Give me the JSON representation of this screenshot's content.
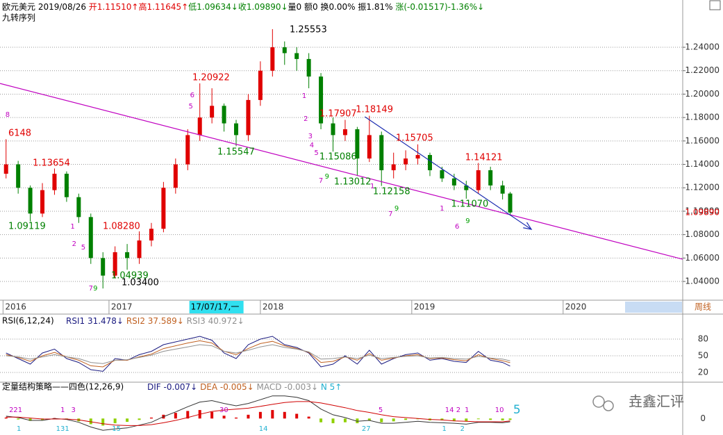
{
  "header": {
    "quote": [
      {
        "text": "欧元美元 2019/08/26 ",
        "color": "#000000"
      },
      {
        "text": "开1.11510↑",
        "color": "#e00000"
      },
      {
        "text": "高1.11645↑",
        "color": "#e00000"
      },
      {
        "text": "低1.09634↓",
        "color": "#008000"
      },
      {
        "text": "收1.09890↓",
        "color": "#008000"
      },
      {
        "text": "量0 额0 换0.00% ",
        "color": "#000000"
      },
      {
        "text": "振1.81% ",
        "color": "#000000"
      },
      {
        "text": "涨(-0.01517)-1.36%↓",
        "color": "#008000"
      }
    ],
    "indicator": "九转序列",
    "period": "周线",
    "cursor_date": "17/07/17,一",
    "watermark": "垚鑫汇评"
  },
  "chart_data": [
    {
      "type": "candlestick",
      "x": [
        2016.32,
        2016.4,
        2016.48,
        2016.56,
        2016.64,
        2016.72,
        2016.8,
        2016.88,
        2016.96,
        2017.04,
        2017.12,
        2017.2,
        2017.28,
        2017.36,
        2017.44,
        2017.52,
        2017.6,
        2017.68,
        2017.76,
        2017.84,
        2017.92,
        2018.0,
        2018.08,
        2018.16,
        2018.24,
        2018.32,
        2018.4,
        2018.48,
        2018.56,
        2018.64,
        2018.72,
        2018.8,
        2018.88,
        2018.96,
        2019.04,
        2019.12,
        2019.2,
        2019.28,
        2019.36,
        2019.44,
        2019.52,
        2019.6,
        2019.65
      ],
      "open": [
        1.132,
        1.14,
        1.12,
        1.098,
        1.118,
        1.132,
        1.112,
        1.095,
        1.06,
        1.045,
        1.065,
        1.06,
        1.075,
        1.085,
        1.12,
        1.14,
        1.165,
        1.18,
        1.19,
        1.175,
        1.165,
        1.195,
        1.22,
        1.24,
        1.235,
        1.23,
        1.215,
        1.175,
        1.165,
        1.17,
        1.145,
        1.165,
        1.135,
        1.14,
        1.145,
        1.148,
        1.135,
        1.128,
        1.122,
        1.118,
        1.135,
        1.122,
        1.1151
      ],
      "high": [
        1.1615,
        1.143,
        1.122,
        1.124,
        1.1365,
        1.134,
        1.115,
        1.098,
        1.065,
        1.07,
        1.072,
        1.0828,
        1.09,
        1.125,
        1.145,
        1.17,
        1.2092,
        1.205,
        1.192,
        1.178,
        1.2,
        1.228,
        1.2555,
        1.245,
        1.24,
        1.235,
        1.218,
        1.18,
        1.178,
        1.172,
        1.1815,
        1.168,
        1.15,
        1.152,
        1.1571,
        1.15,
        1.138,
        1.132,
        1.126,
        1.1412,
        1.138,
        1.126,
        1.1165
      ],
      "low": [
        1.128,
        1.115,
        1.0912,
        1.095,
        1.114,
        1.108,
        1.09,
        1.055,
        1.034,
        1.043,
        1.05,
        1.055,
        1.07,
        1.082,
        1.115,
        1.135,
        1.16,
        1.175,
        1.168,
        1.1555,
        1.16,
        1.19,
        1.215,
        1.225,
        1.22,
        1.205,
        1.17,
        1.1509,
        1.16,
        1.1301,
        1.142,
        1.1216,
        1.128,
        1.135,
        1.14,
        1.13,
        1.125,
        1.118,
        1.1107,
        1.115,
        1.118,
        1.11,
        1.0963
      ],
      "close": [
        1.14,
        1.12,
        1.098,
        1.118,
        1.132,
        1.112,
        1.095,
        1.06,
        1.045,
        1.065,
        1.06,
        1.075,
        1.085,
        1.12,
        1.14,
        1.165,
        1.18,
        1.19,
        1.175,
        1.165,
        1.195,
        1.22,
        1.24,
        1.235,
        1.23,
        1.215,
        1.175,
        1.165,
        1.17,
        1.145,
        1.165,
        1.135,
        1.14,
        1.145,
        1.148,
        1.135,
        1.128,
        1.122,
        1.118,
        1.135,
        1.122,
        1.115,
        1.0989
      ],
      "up_color": "#e00000",
      "down_color": "#008000",
      "xlim": [
        2016.28,
        2020.79
      ],
      "ylim": [
        1.024,
        1.2697
      ],
      "xticks": [
        {
          "value": 2016.3,
          "label": "2016"
        },
        2017,
        2018,
        2019,
        2020
      ],
      "yticks": [
        {
          "value": 1.04,
          "label": "1.04000"
        },
        {
          "value": 1.06,
          "label": "1.06000"
        },
        {
          "value": 1.08,
          "label": "1.08000"
        },
        {
          "value": 1.1,
          "label": "1.10000"
        },
        {
          "value": 1.12,
          "label": "1.12000"
        },
        {
          "value": 1.14,
          "label": "1.14000"
        },
        {
          "value": 1.16,
          "label": "1.16000"
        },
        {
          "value": 1.18,
          "label": "1.18000"
        },
        {
          "value": 1.2,
          "label": "1.20000"
        },
        {
          "value": 1.22,
          "label": "1.22000"
        },
        {
          "value": 1.24,
          "label": "1.24000"
        }
      ],
      "last_price": {
        "value": 1.0989,
        "label": "1.09890",
        "color": "#e00000"
      },
      "cursor_x": 2017.54,
      "grid": true,
      "lines": [
        {
          "color": "#c000c0",
          "points": [
            [
              2016.28,
              1.2091
            ],
            [
              2020.79,
              1.059
            ]
          ]
        },
        {
          "color": "#1a2bb0",
          "points": [
            [
              2018.69,
              1.1807
            ],
            [
              2019.79,
              1.0845
            ]
          ],
          "arrow": true
        }
      ],
      "annotations": [
        {
          "text": "6148",
          "x": 2016.335,
          "y": 1.1664,
          "color": "#e00000"
        },
        {
          "text": "1.13654",
          "x": 2016.496,
          "y": 1.1409,
          "color": "#e00000"
        },
        {
          "text": "1.09119",
          "x": 2016.335,
          "y": 1.0869,
          "color": "#008000"
        },
        {
          "text": "1.08280",
          "x": 2016.959,
          "y": 1.0869,
          "color": "#e00000"
        },
        {
          "text": "1.04939",
          "x": 2017.014,
          "y": 1.0448,
          "color": "#008000"
        },
        {
          "text": "1.03400",
          "x": 2017.083,
          "y": 1.0388,
          "color": "#000000"
        },
        {
          "text": "1.20922",
          "x": 2017.551,
          "y": 1.2139,
          "color": "#e00000"
        },
        {
          "text": "1.15547",
          "x": 2017.716,
          "y": 1.1504,
          "color": "#008000"
        },
        {
          "text": "1.25553",
          "x": 2018.193,
          "y": 1.2548,
          "color": "#000000"
        },
        {
          "text": "1.17907",
          "x": 2018.39,
          "y": 1.183,
          "color": "#e00000"
        },
        {
          "text": "1.18149",
          "x": 2018.63,
          "y": 1.1866,
          "color": "#e00000"
        },
        {
          "text": "1.15086",
          "x": 2018.39,
          "y": 1.1462,
          "color": "#008000"
        },
        {
          "text": "1.13012",
          "x": 2018.486,
          "y": 1.1249,
          "color": "#008000"
        },
        {
          "text": "1.12158",
          "x": 2018.743,
          "y": 1.1166,
          "color": "#008000"
        },
        {
          "text": "1.15705",
          "x": 2018.895,
          "y": 1.1623,
          "color": "#e00000"
        },
        {
          "text": "1.14121",
          "x": 2019.353,
          "y": 1.1456,
          "color": "#e00000"
        },
        {
          "text": "1.11070",
          "x": 2019.26,
          "y": 1.1059,
          "color": "#008000"
        }
      ],
      "sequence_labels": [
        {
          "text": "8",
          "x": 2016.33,
          "y": 1.1824,
          "color": "#c000c0"
        },
        {
          "text": "1",
          "x": 2016.76,
          "y": 1.0869,
          "color": "#c000c0"
        },
        {
          "text": "2",
          "x": 2016.77,
          "y": 1.072,
          "color": "#c000c0"
        },
        {
          "text": "5",
          "x": 2016.83,
          "y": 1.069,
          "color": "#c000c0"
        },
        {
          "text": "7",
          "x": 2016.88,
          "y": 1.034,
          "color": "#c000c0"
        },
        {
          "text": "9",
          "x": 2016.91,
          "y": 1.034,
          "color": "#00a000"
        },
        {
          "text": "5",
          "x": 2017.54,
          "y": 1.1896,
          "color": "#c000c0"
        },
        {
          "text": "6",
          "x": 2017.55,
          "y": 1.199,
          "color": "#c000c0"
        },
        {
          "text": "1",
          "x": 2018.29,
          "y": 1.1985,
          "color": "#c000c0"
        },
        {
          "text": "2",
          "x": 2018.3,
          "y": 1.1789,
          "color": "#c000c0"
        },
        {
          "text": "3",
          "x": 2018.33,
          "y": 1.164,
          "color": "#c000c0"
        },
        {
          "text": "4",
          "x": 2018.34,
          "y": 1.1563,
          "color": "#c000c0"
        },
        {
          "text": "5",
          "x": 2018.37,
          "y": 1.1498,
          "color": "#c000c0"
        },
        {
          "text": "7",
          "x": 2018.4,
          "y": 1.126,
          "color": "#c000c0"
        },
        {
          "text": "9",
          "x": 2018.44,
          "y": 1.1296,
          "color": "#00a000"
        },
        {
          "text": "1",
          "x": 2018.74,
          "y": 1.1213,
          "color": "#c000c0"
        },
        {
          "text": "7",
          "x": 2018.86,
          "y": 1.0976,
          "color": "#c000c0"
        },
        {
          "text": "9",
          "x": 2018.9,
          "y": 1.1023,
          "color": "#00a000"
        },
        {
          "text": "1",
          "x": 2019.2,
          "y": 1.1023,
          "color": "#c000c0"
        },
        {
          "text": "6",
          "x": 2019.3,
          "y": 1.0869,
          "color": "#c000c0"
        },
        {
          "text": "9",
          "x": 2019.37,
          "y": 1.0916,
          "color": "#00a000"
        }
      ]
    },
    {
      "type": "line",
      "title": "RSI(6,12,24)",
      "legend": [
        {
          "text": "RSI1 31.478↓",
          "color": "#1a1a80"
        },
        {
          "text": "RSI2 37.589↓",
          "color": "#c06020"
        },
        {
          "text": "RSI3 40.972↓",
          "color": "#909090"
        }
      ],
      "series": [
        {
          "name": "RSI1",
          "color": "#1a1a80",
          "values": [
            55,
            45,
            35,
            55,
            62,
            45,
            38,
            25,
            22,
            45,
            42,
            52,
            58,
            70,
            75,
            80,
            85,
            78,
            55,
            45,
            70,
            80,
            85,
            70,
            65,
            55,
            30,
            35,
            50,
            35,
            60,
            35,
            45,
            52,
            55,
            42,
            45,
            40,
            38,
            58,
            42,
            38,
            31.478
          ]
        },
        {
          "name": "RSI2",
          "color": "#c06020",
          "values": [
            52,
            47,
            40,
            50,
            56,
            48,
            42,
            32,
            30,
            42,
            42,
            48,
            53,
            63,
            68,
            73,
            77,
            73,
            58,
            52,
            63,
            72,
            76,
            68,
            63,
            56,
            38,
            40,
            48,
            42,
            54,
            42,
            46,
            50,
            52,
            45,
            46,
            43,
            41,
            52,
            45,
            41,
            37.589
          ]
        },
        {
          "name": "RSI3",
          "color": "#909090",
          "values": [
            50,
            48,
            44,
            48,
            52,
            48,
            45,
            38,
            36,
            42,
            43,
            47,
            51,
            58,
            62,
            66,
            70,
            68,
            58,
            55,
            60,
            66,
            70,
            65,
            62,
            57,
            44,
            45,
            48,
            45,
            51,
            45,
            47,
            49,
            50,
            46,
            47,
            45,
            44,
            49,
            46,
            44,
            40.972
          ]
        }
      ],
      "ylim": [
        5,
        102.5
      ],
      "yticks": [
        20,
        50,
        80
      ],
      "grid": true
    },
    {
      "type": "macd",
      "title": "定量结构策略——四色(12,26,9)",
      "legend": [
        {
          "text": "DIF -0.007↓",
          "color": "#1a1a80"
        },
        {
          "text": "DEA -0.005↓",
          "color": "#c06020"
        },
        {
          "text": "MACD -0.003↓",
          "color": "#909090"
        },
        {
          "text": "N 5↑",
          "color": "#20b0d0"
        }
      ],
      "histogram": [
        0.002,
        -0.002,
        -0.005,
        -0.003,
        0.001,
        -0.002,
        -0.006,
        -0.012,
        -0.015,
        -0.01,
        -0.007,
        -0.003,
        0.002,
        0.008,
        0.012,
        0.016,
        0.018,
        0.014,
        0.006,
        0.002,
        0.008,
        0.014,
        0.018,
        0.014,
        0.01,
        0.004,
        -0.008,
        -0.01,
        -0.008,
        -0.01,
        -0.004,
        -0.008,
        -0.006,
        -0.003,
        -0.001,
        -0.004,
        -0.004,
        -0.005,
        -0.006,
        -0.001,
        -0.003,
        -0.004,
        -0.003
      ],
      "up_color": "#e00000",
      "down_color": "#8fd000",
      "series": [
        {
          "name": "DIF",
          "color": "#333333",
          "values": [
            0.005,
            0.002,
            -0.004,
            -0.004,
            0.0,
            -0.002,
            -0.008,
            -0.018,
            -0.025,
            -0.022,
            -0.02,
            -0.014,
            -0.008,
            0.004,
            0.014,
            0.025,
            0.035,
            0.038,
            0.032,
            0.027,
            0.032,
            0.04,
            0.048,
            0.048,
            0.045,
            0.038,
            0.02,
            0.008,
            0.002,
            -0.006,
            -0.004,
            -0.01,
            -0.01,
            -0.008,
            -0.006,
            -0.008,
            -0.009,
            -0.01,
            -0.012,
            -0.008,
            -0.008,
            -0.009,
            -0.007
          ]
        },
        {
          "name": "DEA",
          "color": "#d00000",
          "values": [
            0.003,
            0.003,
            0.001,
            -0.001,
            -0.001,
            -0.001,
            -0.003,
            -0.007,
            -0.011,
            -0.014,
            -0.015,
            -0.015,
            -0.013,
            -0.009,
            -0.004,
            0.002,
            0.009,
            0.015,
            0.018,
            0.02,
            0.022,
            0.026,
            0.03,
            0.034,
            0.036,
            0.036,
            0.033,
            0.028,
            0.023,
            0.017,
            0.013,
            0.008,
            0.004,
            0.002,
            0.0,
            -0.002,
            -0.003,
            -0.005,
            -0.006,
            -0.007,
            -0.007,
            -0.007,
            -0.005
          ]
        }
      ],
      "ylim": [
        -0.035,
        0.055
      ],
      "yticks": [
        0
      ],
      "counts": [
        {
          "text": "221",
          "x": 2016.34,
          "row": "top",
          "color": "#c000c0"
        },
        {
          "text": "1",
          "x": 2016.68,
          "row": "top",
          "color": "#c000c0"
        },
        {
          "text": "3",
          "x": 2016.75,
          "row": "top",
          "color": "#c000c0"
        },
        {
          "text": "30",
          "x": 2017.73,
          "row": "top",
          "color": "#c000c0"
        },
        {
          "text": "5",
          "x": 2018.78,
          "row": "top",
          "color": "#c000c0"
        },
        {
          "text": "14 2",
          "x": 2019.22,
          "row": "top",
          "color": "#c000c0"
        },
        {
          "text": "1",
          "x": 2019.35,
          "row": "top",
          "color": "#c000c0"
        },
        {
          "text": "10",
          "x": 2019.55,
          "row": "top",
          "color": "#c000c0"
        },
        {
          "text": "1",
          "x": 2016.39,
          "row": "bottom",
          "color": "#20b0d0"
        },
        {
          "text": "131",
          "x": 2016.65,
          "row": "bottom",
          "color": "#20b0d0"
        },
        {
          "text": "15",
          "x": 2017.02,
          "row": "bottom",
          "color": "#20b0d0"
        },
        {
          "text": "14",
          "x": 2017.99,
          "row": "bottom",
          "color": "#20b0d0"
        },
        {
          "text": "27",
          "x": 2018.67,
          "row": "bottom",
          "color": "#20b0d0"
        },
        {
          "text": "1",
          "x": 2019.2,
          "row": "bottom",
          "color": "#20b0d0"
        },
        {
          "text": "2",
          "x": 2019.32,
          "row": "bottom",
          "color": "#20b0d0"
        }
      ],
      "signal": {
        "text": "5",
        "x": 2019.67,
        "color": "#20b0d0"
      }
    }
  ]
}
